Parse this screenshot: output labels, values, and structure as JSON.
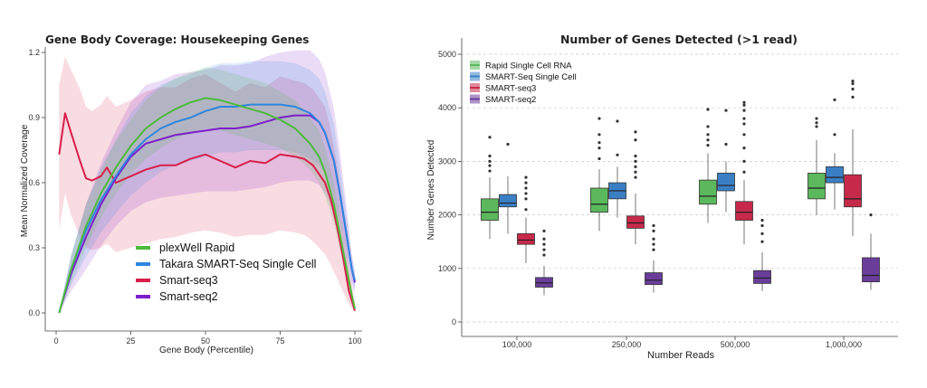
{
  "chart_data": [
    {
      "type": "line",
      "title": "Gene Body Coverage: Housekeeping Genes",
      "xlabel": "Gene Body (Percentile)",
      "ylabel": "Mean Normalized Coverage",
      "xlim": [
        0,
        100
      ],
      "ylim": [
        0,
        1.2
      ],
      "xticks": [
        "0",
        "25",
        "50",
        "75",
        "100"
      ],
      "yticks": [
        "0.0",
        "0.3",
        "0.6",
        "0.9",
        "1.2"
      ],
      "legend_position": "bottom-center",
      "series": [
        {
          "name": "plexWell Rapid",
          "color": "#4cba3c",
          "x": [
            1,
            5,
            10,
            15,
            20,
            25,
            30,
            35,
            40,
            45,
            50,
            55,
            60,
            65,
            70,
            75,
            80,
            85,
            88,
            90,
            93,
            95,
            97,
            99,
            100
          ],
          "y": [
            0.0,
            0.2,
            0.4,
            0.55,
            0.67,
            0.77,
            0.85,
            0.9,
            0.94,
            0.97,
            0.99,
            0.98,
            0.96,
            0.94,
            0.92,
            0.89,
            0.85,
            0.78,
            0.72,
            0.65,
            0.5,
            0.36,
            0.22,
            0.08,
            0.02
          ],
          "lo": [
            0.0,
            0.14,
            0.3,
            0.44,
            0.55,
            0.64,
            0.71,
            0.76,
            0.8,
            0.83,
            0.85,
            0.84,
            0.82,
            0.8,
            0.78,
            0.76,
            0.72,
            0.66,
            0.6,
            0.54,
            0.41,
            0.29,
            0.17,
            0.06,
            0.01
          ],
          "hi": [
            0.0,
            0.26,
            0.5,
            0.66,
            0.79,
            0.89,
            0.98,
            1.04,
            1.08,
            1.11,
            1.13,
            1.12,
            1.1,
            1.08,
            1.06,
            1.02,
            0.98,
            0.9,
            0.84,
            0.76,
            0.6,
            0.44,
            0.28,
            0.11,
            0.03
          ]
        },
        {
          "name": "Takara SMART-Seq Single Cell",
          "color": "#2e86de",
          "x": [
            1,
            5,
            10,
            15,
            20,
            25,
            30,
            35,
            40,
            45,
            50,
            55,
            60,
            65,
            70,
            75,
            80,
            85,
            88,
            90,
            93,
            95,
            97,
            99,
            100
          ],
          "y": [
            0.0,
            0.2,
            0.38,
            0.52,
            0.63,
            0.73,
            0.8,
            0.85,
            0.88,
            0.9,
            0.93,
            0.95,
            0.95,
            0.96,
            0.96,
            0.96,
            0.95,
            0.92,
            0.88,
            0.83,
            0.7,
            0.55,
            0.38,
            0.2,
            0.15
          ],
          "lo": [
            0.0,
            0.13,
            0.26,
            0.37,
            0.46,
            0.54,
            0.6,
            0.65,
            0.68,
            0.7,
            0.72,
            0.74,
            0.74,
            0.75,
            0.75,
            0.75,
            0.74,
            0.71,
            0.68,
            0.64,
            0.53,
            0.42,
            0.29,
            0.15,
            0.11
          ],
          "hi": [
            0.0,
            0.27,
            0.5,
            0.67,
            0.8,
            0.92,
            1.0,
            1.05,
            1.08,
            1.1,
            1.13,
            1.15,
            1.15,
            1.16,
            1.16,
            1.16,
            1.15,
            1.12,
            1.08,
            1.02,
            0.87,
            0.68,
            0.47,
            0.25,
            0.19
          ]
        },
        {
          "name": "Smart-seq3",
          "color": "#d81e4a",
          "x": [
            1,
            3,
            5,
            8,
            10,
            12,
            15,
            17,
            20,
            25,
            30,
            35,
            40,
            45,
            50,
            55,
            60,
            65,
            70,
            75,
            80,
            83,
            86,
            88,
            90,
            92,
            94,
            96,
            98,
            100
          ],
          "y": [
            0.73,
            0.92,
            0.83,
            0.7,
            0.62,
            0.61,
            0.63,
            0.67,
            0.6,
            0.63,
            0.66,
            0.68,
            0.68,
            0.71,
            0.73,
            0.7,
            0.67,
            0.7,
            0.69,
            0.73,
            0.72,
            0.71,
            0.68,
            0.64,
            0.6,
            0.52,
            0.4,
            0.26,
            0.1,
            0.01
          ],
          "lo": [
            0.38,
            0.55,
            0.45,
            0.35,
            0.3,
            0.29,
            0.3,
            0.32,
            0.28,
            0.3,
            0.32,
            0.34,
            0.35,
            0.37,
            0.38,
            0.37,
            0.35,
            0.36,
            0.36,
            0.38,
            0.37,
            0.36,
            0.33,
            0.3,
            0.27,
            0.22,
            0.16,
            0.1,
            0.04,
            0.0
          ],
          "hi": [
            1.05,
            1.18,
            1.12,
            1.03,
            0.95,
            0.93,
            0.96,
            1.0,
            0.95,
            0.98,
            1.02,
            1.04,
            1.04,
            1.08,
            1.1,
            1.06,
            1.02,
            1.06,
            1.04,
            1.09,
            1.07,
            1.06,
            1.03,
            0.99,
            0.95,
            0.84,
            0.69,
            0.5,
            0.22,
            0.05
          ]
        },
        {
          "name": "Smart-seq2",
          "color": "#7b1fc9",
          "x": [
            1,
            5,
            10,
            15,
            20,
            25,
            30,
            35,
            40,
            45,
            50,
            55,
            60,
            65,
            70,
            75,
            80,
            85,
            88,
            90,
            93,
            95,
            97,
            99,
            100
          ],
          "y": [
            0.0,
            0.18,
            0.35,
            0.5,
            0.62,
            0.72,
            0.78,
            0.8,
            0.82,
            0.83,
            0.84,
            0.85,
            0.85,
            0.86,
            0.88,
            0.9,
            0.91,
            0.91,
            0.88,
            0.83,
            0.7,
            0.55,
            0.38,
            0.2,
            0.14
          ],
          "lo": [
            0.0,
            0.1,
            0.2,
            0.31,
            0.4,
            0.47,
            0.51,
            0.53,
            0.54,
            0.55,
            0.56,
            0.56,
            0.56,
            0.57,
            0.58,
            0.6,
            0.61,
            0.61,
            0.59,
            0.55,
            0.46,
            0.36,
            0.25,
            0.13,
            0.09
          ],
          "hi": [
            0.0,
            0.26,
            0.5,
            0.69,
            0.84,
            0.97,
            1.05,
            1.07,
            1.1,
            1.11,
            1.12,
            1.14,
            1.14,
            1.15,
            1.18,
            1.2,
            1.21,
            1.21,
            1.17,
            1.11,
            0.94,
            0.74,
            0.51,
            0.27,
            0.19
          ]
        }
      ]
    },
    {
      "type": "box",
      "title": "Number of Genes Detected (>1 read)",
      "xlabel": "Number Reads",
      "ylabel": "Number Genes Detected",
      "ylim": [
        -200,
        5200
      ],
      "yticks": [
        "0",
        "1000",
        "2000",
        "3000",
        "4000",
        "5000"
      ],
      "categories": [
        "100,000",
        "250,000",
        "500,000",
        "1,000,000"
      ],
      "legend_position": "top-left",
      "grid": true,
      "series": [
        {
          "name": "Rapid Single Cell RNA",
          "color": "#5cb85c",
          "boxes": [
            {
              "q1": 1900,
              "median": 2050,
              "q3": 2300,
              "lo": 1550,
              "hi": 2700,
              "out": [
                2820,
                2920,
                3000,
                3100,
                3450
              ]
            },
            {
              "q1": 2050,
              "median": 2200,
              "q3": 2500,
              "lo": 1700,
              "hi": 2850,
              "out": [
                3050,
                3250,
                3350,
                3500,
                3800
              ]
            },
            {
              "q1": 2200,
              "median": 2350,
              "q3": 2650,
              "lo": 1850,
              "hi": 3150,
              "out": [
                3300,
                3400,
                3500,
                3650,
                3970
              ]
            },
            {
              "q1": 2300,
              "median": 2500,
              "q3": 2780,
              "lo": 2000,
              "hi": 3400,
              "out": [
                3650,
                3720,
                3800
              ]
            }
          ]
        },
        {
          "name": "SMART-Seq Single Cell",
          "color": "#3a7fc4",
          "boxes": [
            {
              "q1": 2150,
              "median": 2220,
              "q3": 2380,
              "lo": 1650,
              "hi": 2720,
              "out": [
                3320
              ]
            },
            {
              "q1": 2300,
              "median": 2450,
              "q3": 2600,
              "lo": 1950,
              "hi": 2900,
              "out": [
                3120,
                3750
              ]
            },
            {
              "q1": 2450,
              "median": 2550,
              "q3": 2780,
              "lo": 2050,
              "hi": 3000,
              "out": [
                3320,
                3950
              ]
            },
            {
              "q1": 2600,
              "median": 2700,
              "q3": 2900,
              "lo": 2100,
              "hi": 3150,
              "out": [
                3500,
                4150
              ]
            }
          ]
        },
        {
          "name": "SMART-seq3",
          "color": "#c7294a",
          "boxes": [
            {
              "q1": 1450,
              "median": 1530,
              "q3": 1650,
              "lo": 1100,
              "hi": 1950,
              "out": [
                2100,
                2300,
                2400,
                2500,
                2600,
                2700
              ]
            },
            {
              "q1": 1750,
              "median": 1850,
              "q3": 1980,
              "lo": 1450,
              "hi": 2400,
              "out": [
                2700,
                2800,
                2900,
                3000,
                3100,
                3400,
                3550
              ]
            },
            {
              "q1": 1900,
              "median": 2050,
              "q3": 2250,
              "lo": 1450,
              "hi": 2650,
              "out": [
                2800,
                3000,
                3250,
                3500,
                3700,
                3800,
                3950,
                4050,
                4100
              ]
            },
            {
              "q1": 2150,
              "median": 2300,
              "q3": 2750,
              "lo": 1600,
              "hi": 3600,
              "out": [
                4200,
                4350,
                4450,
                4500
              ]
            }
          ]
        },
        {
          "name": "SMART-seq2",
          "color": "#6a3d9a",
          "boxes": [
            {
              "q1": 650,
              "median": 730,
              "q3": 830,
              "lo": 500,
              "hi": 1050,
              "out": [
                1250,
                1350,
                1450,
                1550,
                1700
              ]
            },
            {
              "q1": 700,
              "median": 780,
              "q3": 920,
              "lo": 550,
              "hi": 1150,
              "out": [
                1350,
                1450,
                1550,
                1700,
                1800
              ]
            },
            {
              "q1": 720,
              "median": 820,
              "q3": 960,
              "lo": 580,
              "hi": 1300,
              "out": [
                1500,
                1650,
                1800,
                1900
              ]
            },
            {
              "q1": 750,
              "median": 870,
              "q3": 1200,
              "lo": 600,
              "hi": 1650,
              "out": [
                2000
              ]
            }
          ]
        }
      ]
    }
  ]
}
